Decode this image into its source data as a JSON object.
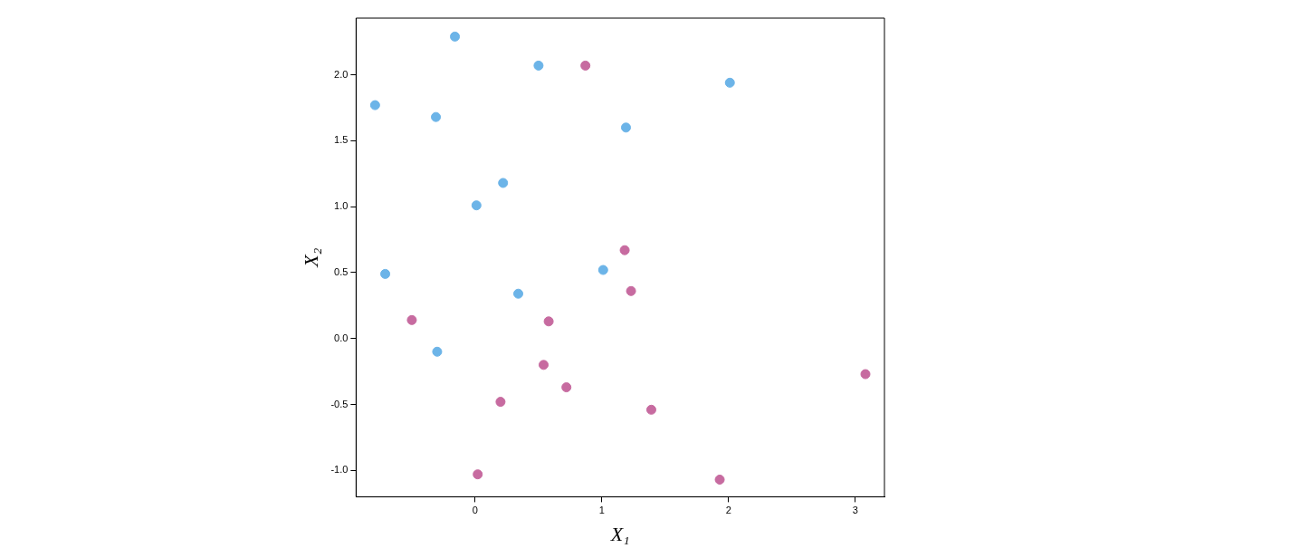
{
  "chart_data": {
    "type": "scatter",
    "xlabel": "X₁",
    "ylabel": "X₂",
    "xlim": [
      -0.94,
      3.23
    ],
    "ylim": [
      -1.2,
      2.43
    ],
    "xticks": [
      0,
      1,
      2,
      3
    ],
    "yticks": [
      {
        "value": -1,
        "label": "-1.0"
      },
      -0.5,
      {
        "value": 0,
        "label": "0.0"
      },
      0.5,
      {
        "value": 1,
        "label": "1.0"
      },
      1.5,
      {
        "value": 2,
        "label": "2.0"
      }
    ],
    "grid": false,
    "legend": false,
    "marker": "circle",
    "series": [
      {
        "color": "#6cb4e8",
        "x": [
          -0.16,
          0.5,
          2.01,
          -0.79,
          -0.31,
          1.19,
          0.22,
          0.01,
          -0.71,
          1.01,
          0.34,
          -0.3
        ],
        "values": [
          2.29,
          2.07,
          1.94,
          1.77,
          1.68,
          1.6,
          1.18,
          1.01,
          0.49,
          0.52,
          0.34,
          -0.1
        ]
      },
      {
        "color": "#c76ba0",
        "x": [
          0.87,
          1.18,
          1.23,
          -0.5,
          0.58,
          0.54,
          0.72,
          0.2,
          1.39,
          3.08,
          0.02,
          1.93
        ],
        "values": [
          2.07,
          0.67,
          0.36,
          0.14,
          0.13,
          -0.2,
          -0.37,
          -0.48,
          -0.54,
          -0.27,
          -1.03,
          -1.07
        ]
      }
    ]
  }
}
